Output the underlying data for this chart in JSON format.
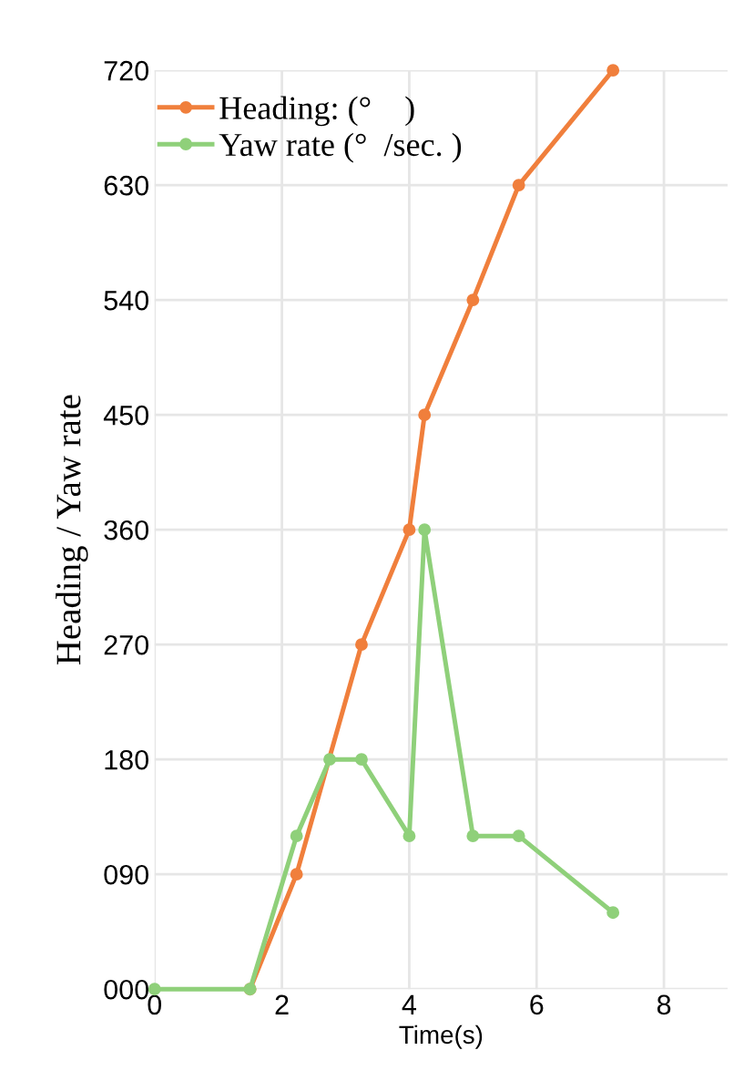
{
  "chart_data": {
    "type": "line",
    "xlabel": "Time(s)",
    "ylabel": "Heading / Yaw rate",
    "xlim": [
      0,
      9
    ],
    "xticks": [
      0,
      2,
      4,
      6,
      8
    ],
    "ylim": [
      0,
      720
    ],
    "yticks": [
      {
        "value": 0,
        "label": "000"
      },
      {
        "value": 90,
        "label": "090"
      },
      180,
      270,
      360,
      450,
      540,
      630,
      720
    ],
    "series": [
      {
        "name": "Heading: (°    )",
        "color": "#f07f3c",
        "x": [
          1.5,
          2.23,
          3.25,
          4.0,
          4.24,
          5.0,
          5.72,
          7.2
        ],
        "values": [
          0,
          90,
          270,
          360,
          450,
          540,
          630,
          720
        ]
      },
      {
        "name": "Yaw rate (°  /sec. )",
        "color": "#8fd07a",
        "x": [
          0,
          1.5,
          2.23,
          2.75,
          3.25,
          4.0,
          4.24,
          5.0,
          5.72,
          7.2
        ],
        "values": [
          0,
          0,
          120,
          180,
          180,
          120,
          360,
          120,
          120,
          60
        ]
      }
    ],
    "grid": true,
    "legend": "top left",
    "marker": "circle",
    "line_style": "solid"
  }
}
